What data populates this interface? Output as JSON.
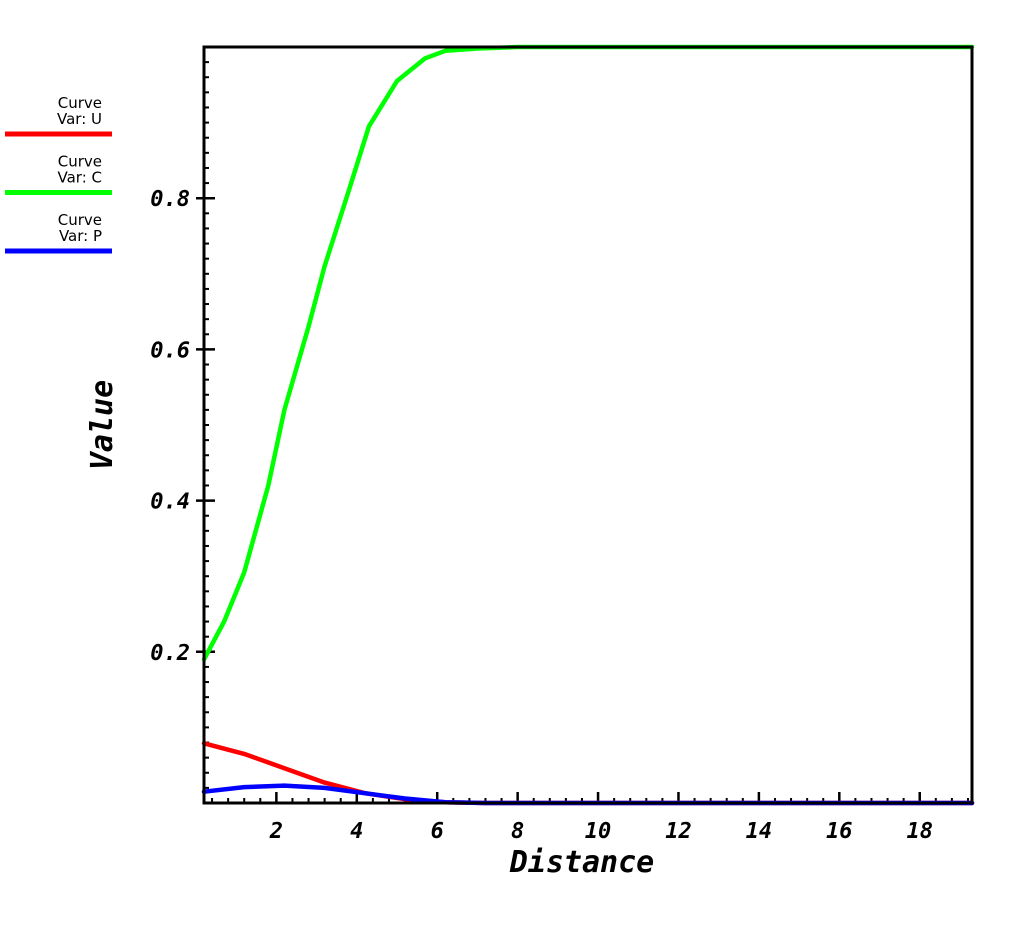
{
  "chart_data": {
    "type": "line",
    "xlabel": "Distance",
    "ylabel": "Value",
    "xlim": [
      0.2,
      19.3
    ],
    "ylim": [
      0.0,
      1.0
    ],
    "xticks": [
      2,
      4,
      6,
      8,
      10,
      12,
      14,
      16,
      18
    ],
    "xtick_labels": [
      "2",
      "4",
      "6",
      "8",
      "10",
      "12",
      "14",
      "16",
      "18"
    ],
    "yticks": [
      0.2,
      0.4,
      0.6,
      0.8
    ],
    "ytick_labels": [
      "0.2",
      "0.4",
      "0.6",
      "0.8"
    ],
    "grid": false,
    "legend_position": "left",
    "series": [
      {
        "name": "Curve\nVar: U",
        "legend_line1": "Curve",
        "legend_line2": "Var: U",
        "color": "#ff0000",
        "x": [
          0.2,
          1.2,
          2.2,
          3.2,
          4.2,
          5.2,
          6.2,
          7.2,
          8.2,
          10,
          12,
          14,
          16,
          18,
          19.3
        ],
        "y": [
          0.079,
          0.065,
          0.046,
          0.027,
          0.013,
          0.005,
          0.001,
          0.0,
          0.0,
          0.0,
          0.0,
          0.0,
          0.0,
          0.0,
          0.0
        ]
      },
      {
        "name": "Curve\nVar: C",
        "legend_line1": "Curve",
        "legend_line2": "Var: C",
        "color": "#00ff00",
        "x": [
          0.2,
          0.7,
          1.2,
          1.8,
          2.2,
          2.8,
          3.2,
          3.8,
          4.3,
          5.0,
          5.7,
          6.2,
          7.0,
          8.0,
          10,
          12,
          14,
          16,
          18,
          19.3
        ],
        "y": [
          0.19,
          0.24,
          0.305,
          0.42,
          0.52,
          0.63,
          0.71,
          0.81,
          0.895,
          0.955,
          0.985,
          0.995,
          0.998,
          1.0,
          1.0,
          1.0,
          1.0,
          1.0,
          1.0,
          1.0
        ],
        "x_extra": []
      },
      {
        "name": "Curve\nVar: P",
        "legend_line1": "Curve",
        "legend_line2": "Var: P",
        "color": "#0000ff",
        "x": [
          0.2,
          1.2,
          2.2,
          3.2,
          4.2,
          5.2,
          6.2,
          7.2,
          8.2,
          10,
          12,
          14,
          16,
          18,
          19.3
        ],
        "y": [
          0.015,
          0.021,
          0.023,
          0.02,
          0.013,
          0.006,
          0.001,
          0.0,
          0.0,
          0.0,
          0.0,
          0.0,
          0.0,
          0.0,
          0.0
        ]
      }
    ]
  }
}
